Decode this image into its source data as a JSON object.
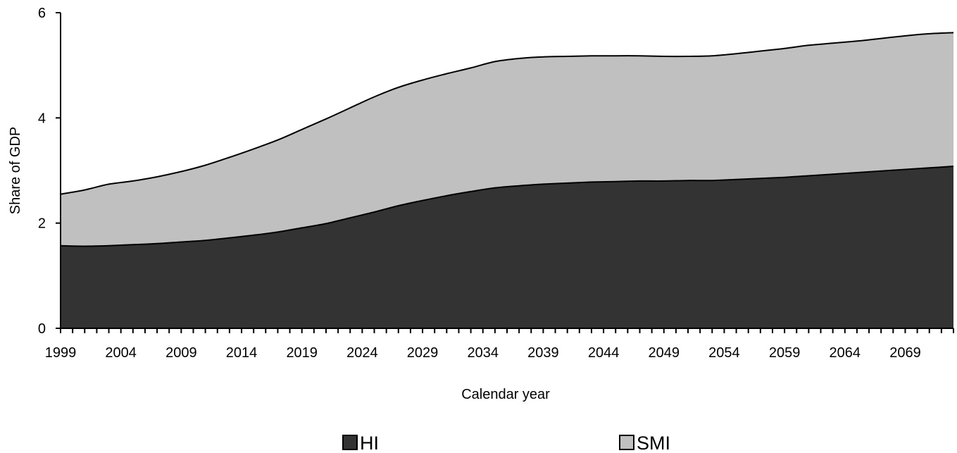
{
  "chart_data": {
    "type": "area",
    "stacked": true,
    "title": "",
    "xlabel": "Calendar year",
    "ylabel": "Share of GDP",
    "xlim": [
      1999,
      2073
    ],
    "ylim": [
      0,
      6
    ],
    "yticks": [
      0,
      2,
      4,
      6
    ],
    "xticklabels": [
      "1999",
      "2004",
      "2009",
      "2014",
      "2019",
      "2024",
      "2029",
      "2034",
      "2039",
      "2044",
      "2049",
      "2054",
      "2059",
      "2064",
      "2069"
    ],
    "grid": false,
    "legend_position": "bottom",
    "x": [
      1999,
      2001,
      2003,
      2005,
      2007,
      2009,
      2011,
      2013,
      2015,
      2017,
      2019,
      2021,
      2023,
      2025,
      2027,
      2029,
      2031,
      2033,
      2035,
      2037,
      2039,
      2041,
      2043,
      2045,
      2047,
      2049,
      2051,
      2053,
      2055,
      2057,
      2059,
      2061,
      2063,
      2065,
      2067,
      2069,
      2071,
      2073
    ],
    "series": [
      {
        "name": "HI",
        "color": "#333333",
        "values": [
          1.57,
          1.56,
          1.57,
          1.59,
          1.61,
          1.64,
          1.67,
          1.72,
          1.77,
          1.83,
          1.91,
          1.99,
          2.1,
          2.21,
          2.33,
          2.43,
          2.52,
          2.6,
          2.67,
          2.71,
          2.74,
          2.76,
          2.78,
          2.79,
          2.8,
          2.8,
          2.81,
          2.81,
          2.83,
          2.85,
          2.87,
          2.9,
          2.93,
          2.96,
          2.99,
          3.02,
          3.05,
          3.08
        ]
      },
      {
        "name": "SMI",
        "color": "#c0c0c0",
        "values": [
          0.98,
          1.07,
          1.17,
          1.21,
          1.27,
          1.34,
          1.43,
          1.53,
          1.64,
          1.75,
          1.87,
          1.99,
          2.09,
          2.19,
          2.25,
          2.29,
          2.32,
          2.35,
          2.4,
          2.42,
          2.42,
          2.41,
          2.4,
          2.39,
          2.38,
          2.37,
          2.36,
          2.37,
          2.39,
          2.42,
          2.45,
          2.48,
          2.49,
          2.5,
          2.52,
          2.54,
          2.55,
          2.54
        ]
      }
    ]
  }
}
